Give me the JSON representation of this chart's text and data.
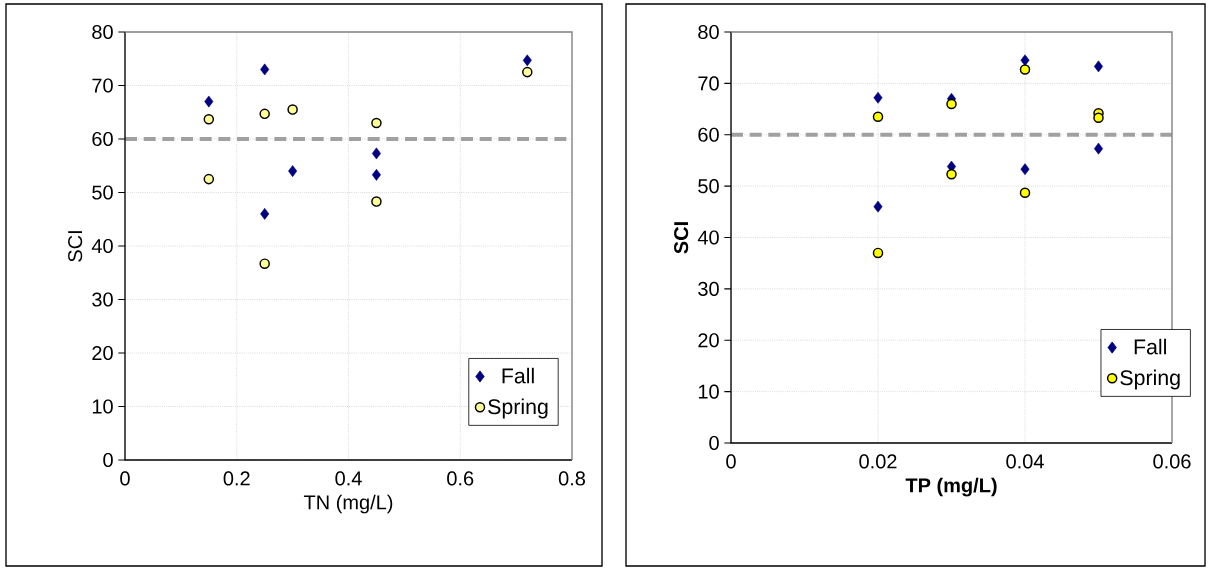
{
  "chart_data": [
    {
      "type": "scatter",
      "xlabel": "TN (mg/L)",
      "ylabel": "SCI",
      "xlim": [
        0,
        0.8
      ],
      "ylim": [
        0,
        80
      ],
      "xticks": [
        0,
        0.2,
        0.4,
        0.6,
        0.8
      ],
      "yticks": [
        0,
        10,
        20,
        30,
        40,
        50,
        60,
        70,
        80
      ],
      "grid": true,
      "legend": "bottom right",
      "ref_lines": [
        {
          "axis": "y",
          "value": 60,
          "color": "#a0a0a0",
          "line_style": "dashed"
        }
      ],
      "series": [
        {
          "name": "Fall",
          "color": "#000080",
          "marker": "diamond",
          "x": [
            0.15,
            0.25,
            0.25,
            0.3,
            0.45,
            0.45,
            0.72
          ],
          "values": [
            67,
            73,
            46,
            54,
            57.3,
            53.3,
            74.7
          ]
        },
        {
          "name": "Spring",
          "color": "#ffff99",
          "marker": "circle",
          "x": [
            0.15,
            0.15,
            0.25,
            0.25,
            0.3,
            0.45,
            0.45,
            0.72
          ],
          "values": [
            63.7,
            52.5,
            64.7,
            36.7,
            65.5,
            63,
            48.3,
            72.5
          ]
        }
      ]
    },
    {
      "type": "scatter",
      "xlabel": "TP (mg/L)",
      "ylabel": "SCI",
      "xlim": [
        0,
        0.06
      ],
      "ylim": [
        0,
        80
      ],
      "xticks": [
        0,
        0.02,
        0.04,
        0.06
      ],
      "yticks": [
        0,
        10,
        20,
        30,
        40,
        50,
        60,
        70,
        80
      ],
      "grid": true,
      "legend": "bottom right",
      "ref_lines": [
        {
          "axis": "y",
          "value": 60,
          "color": "#a0a0a0",
          "line_style": "dashed"
        }
      ],
      "series": [
        {
          "name": "Fall",
          "color": "#000080",
          "marker": "diamond",
          "x": [
            0.02,
            0.02,
            0.03,
            0.03,
            0.04,
            0.04,
            0.05,
            0.05
          ],
          "values": [
            67.2,
            46,
            67,
            53.8,
            74.5,
            53.3,
            73.3,
            57.3
          ]
        },
        {
          "name": "Spring",
          "color": "#ffff00",
          "marker": "circle",
          "x": [
            0.02,
            0.02,
            0.03,
            0.03,
            0.04,
            0.04,
            0.05,
            0.05
          ],
          "values": [
            63.5,
            37,
            66,
            52.3,
            72.7,
            48.7,
            64.2,
            63.3
          ]
        }
      ]
    }
  ]
}
